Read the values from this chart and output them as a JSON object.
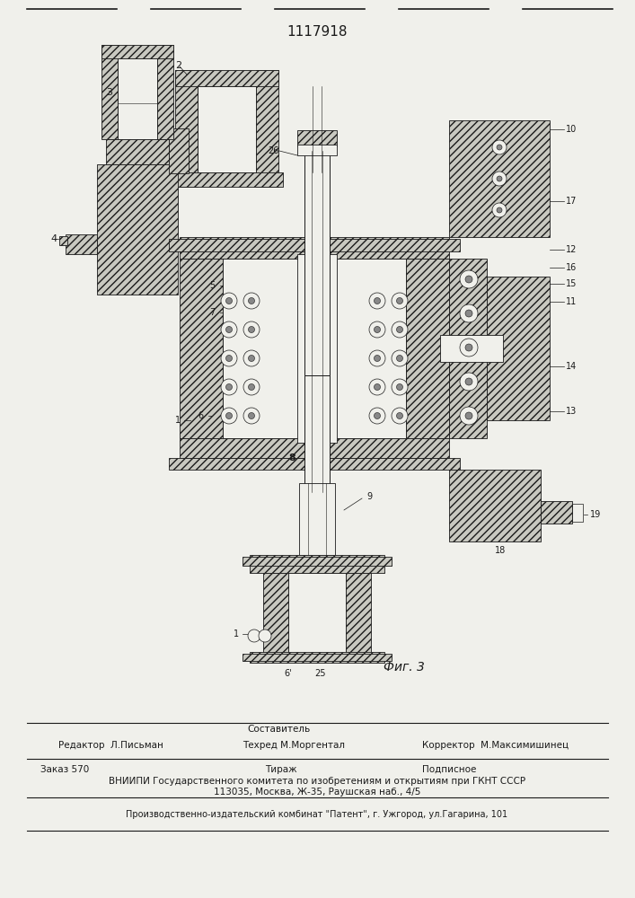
{
  "patent_number": "1117918",
  "figure_label": "Фиг. 3",
  "bg_color": "#f0f0eb",
  "line_color": "#1a1a1a",
  "hatch_fill": "#c8c8c0",
  "white_fill": "#f0f0eb",
  "footer": {
    "sestavitel_label": "Составитель",
    "editor_line": "Редактор  Л.Письман",
    "tehred_line": "Техред М.Моргентал",
    "korrektor_line": "Корректор  М.Максимишинец",
    "zakaz_line": "Заказ 570",
    "tirazh_line": "Тираж",
    "podpisnoe_line": "Подписное",
    "vniipи1": "ВНИИПИ Государственного комитета по изобретениям и открытиям при ГКНТ СССР",
    "vniipи2": "113035, Москва, Ж-35, Раушская наб., 4/5",
    "producer": "Производственно-издательский комбинат \"Патент\", г. Ужгород, ул.Гагарина, 101"
  }
}
